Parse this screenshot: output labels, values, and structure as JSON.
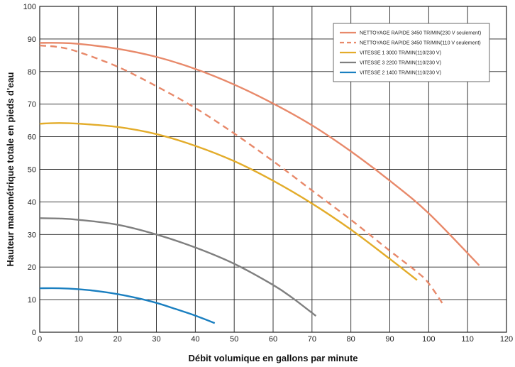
{
  "chart_data": {
    "type": "line",
    "xlabel": "Débit volumique en gallons par minute",
    "ylabel": "Hauteur manométrique totale en pieds d'eau",
    "xlim": [
      0,
      120
    ],
    "ylim": [
      0,
      100
    ],
    "xticks": [
      "0",
      "10",
      "20",
      "30",
      "40",
      "50",
      "60",
      "70",
      "80",
      "90",
      "100",
      "110",
      "120"
    ],
    "yticks": [
      "0",
      "10",
      "20",
      "30",
      "40",
      "50",
      "60",
      "70",
      "80",
      "90",
      "100"
    ],
    "grid": true,
    "legend_position": "top-right",
    "series": [
      {
        "name": "NETTOYAGE RAPIDE 3450 TR/MIN(230 V seulement)",
        "color": "#e8896a",
        "dash": false,
        "x": [
          0,
          5,
          10,
          20,
          30,
          40,
          50,
          60,
          70,
          80,
          90,
          100,
          113
        ],
        "y": [
          88.8,
          88.8,
          88.5,
          87,
          84.5,
          80.8,
          76,
          70.2,
          63.5,
          55.5,
          46.5,
          36.5,
          20.5
        ]
      },
      {
        "name": "NETTOYAGE RAPIDE 3450 TR/MIN(110 V seulement)",
        "color": "#e8896a",
        "dash": true,
        "x": [
          0,
          5,
          10,
          20,
          30,
          40,
          50,
          60,
          70,
          80,
          90,
          97,
          100,
          104
        ],
        "y": [
          88,
          87.5,
          86,
          81.5,
          75.5,
          68.8,
          61,
          52.5,
          43.5,
          34.5,
          25,
          18.5,
          15,
          8
        ]
      },
      {
        "name": "VITESSE 1 3000 TR/MIN(110/230 V)",
        "color": "#e3ac2a",
        "dash": false,
        "x": [
          0,
          5,
          10,
          20,
          30,
          40,
          50,
          60,
          70,
          80,
          90,
          97
        ],
        "y": [
          64,
          64.2,
          64,
          63,
          60.8,
          57.2,
          52.5,
          46.5,
          39.5,
          31.5,
          22.5,
          16
        ]
      },
      {
        "name": "VITESSE 3 2200 TR/MIN(110/230 V)",
        "color": "#7f7f7f",
        "dash": false,
        "x": [
          0,
          5,
          10,
          20,
          30,
          40,
          50,
          60,
          65,
          71
        ],
        "y": [
          35,
          34.9,
          34.5,
          33,
          30,
          26,
          21,
          14.5,
          10.5,
          5
        ]
      },
      {
        "name": "VITESSE 2 1400 TR/MIN(110/230 V)",
        "color": "#1a7fc0",
        "dash": false,
        "x": [
          0,
          5,
          10,
          15,
          20,
          25,
          30,
          35,
          40,
          45
        ],
        "y": [
          13.5,
          13.5,
          13.2,
          12.6,
          11.7,
          10.5,
          9,
          7.1,
          5.1,
          2.8
        ]
      }
    ]
  }
}
